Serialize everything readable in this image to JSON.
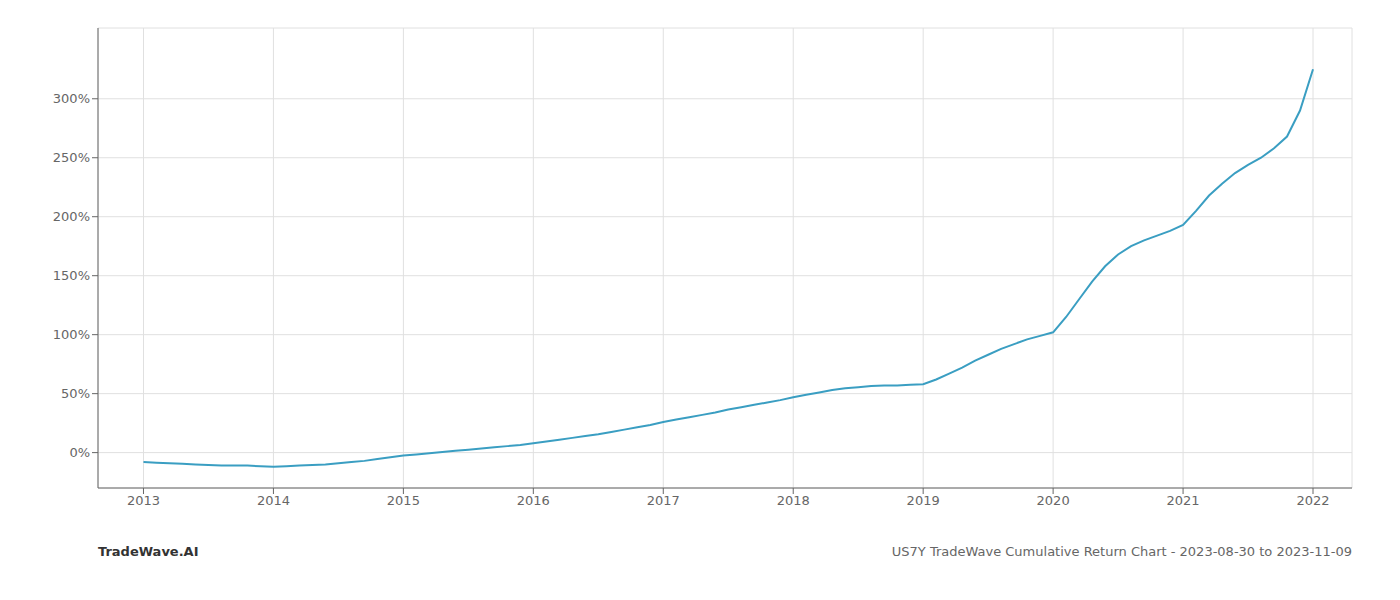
{
  "chart_data": {
    "type": "line",
    "title": "US7Y TradeWave Cumulative Return Chart - 2023-08-30 to 2023-11-09",
    "annotations": [
      "TradeWave.AI"
    ],
    "color": "#3a9ec2",
    "grid": true,
    "x": [
      2013.0,
      2013.1,
      2013.2,
      2013.3,
      2013.4,
      2013.5,
      2013.6,
      2013.7,
      2013.8,
      2013.9,
      2014.0,
      2014.1,
      2014.2,
      2014.3,
      2014.4,
      2014.5,
      2014.6,
      2014.7,
      2014.8,
      2014.9,
      2015.0,
      2015.1,
      2015.2,
      2015.3,
      2015.4,
      2015.5,
      2015.6,
      2015.7,
      2015.8,
      2015.9,
      2016.0,
      2016.1,
      2016.2,
      2016.3,
      2016.4,
      2016.5,
      2016.6,
      2016.7,
      2016.8,
      2016.9,
      2017.0,
      2017.1,
      2017.2,
      2017.3,
      2017.4,
      2017.5,
      2017.6,
      2017.7,
      2017.8,
      2017.9,
      2018.0,
      2018.1,
      2018.2,
      2018.3,
      2018.4,
      2018.5,
      2018.6,
      2018.7,
      2018.8,
      2018.9,
      2019.0,
      2019.1,
      2019.2,
      2019.3,
      2019.4,
      2019.5,
      2019.6,
      2019.7,
      2019.8,
      2019.9,
      2020.0,
      2020.1,
      2020.2,
      2020.3,
      2020.4,
      2020.5,
      2020.6,
      2020.7,
      2020.8,
      2020.9,
      2021.0,
      2021.1,
      2021.2,
      2021.3,
      2021.4,
      2021.5,
      2021.6,
      2021.7,
      2021.8,
      2021.9,
      2022.0
    ],
    "values": [
      -8.0,
      -8.5,
      -9.0,
      -9.5,
      -10.0,
      -10.5,
      -11.0,
      -11.0,
      -11.0,
      -11.5,
      -12.0,
      -11.5,
      -11.0,
      -10.5,
      -10.0,
      -9.0,
      -8.0,
      -7.0,
      -5.5,
      -4.0,
      -2.5,
      -1.5,
      -0.5,
      0.5,
      1.5,
      2.5,
      3.5,
      4.5,
      5.5,
      6.5,
      8.0,
      9.5,
      11.0,
      12.5,
      14.0,
      15.5,
      17.5,
      19.5,
      21.5,
      23.5,
      26.0,
      28.0,
      30.0,
      32.0,
      34.0,
      36.5,
      38.5,
      40.5,
      42.5,
      44.5,
      47.0,
      49.0,
      51.0,
      53.0,
      54.5,
      55.5,
      56.5,
      57.0,
      57.0,
      57.5,
      58.0,
      62.0,
      67.0,
      72.0,
      78.0,
      83.0,
      88.0,
      92.0,
      96.0,
      99.0,
      102.0,
      115.0,
      130.0,
      145.0,
      158.0,
      168.0,
      175.0,
      180.0,
      184.0,
      188.0,
      193.0,
      205.0,
      218.0,
      228.0,
      237.0,
      244.0,
      250.0,
      258.0,
      268.0,
      290.0,
      325.0
    ],
    "xlim": [
      2012.65,
      2022.3
    ],
    "ylim": [
      -30,
      360
    ],
    "xticks": [
      2013,
      2014,
      2015,
      2016,
      2017,
      2018,
      2019,
      2020,
      2021,
      2022
    ],
    "yticks": [
      {
        "value": 0,
        "label": "0%"
      },
      {
        "value": 50,
        "label": "50%"
      },
      {
        "value": 100,
        "label": "100%"
      },
      {
        "value": 150,
        "label": "150%"
      },
      {
        "value": 200,
        "label": "200%"
      },
      {
        "value": 250,
        "label": "250%"
      },
      {
        "value": 300,
        "label": "300%"
      }
    ]
  }
}
